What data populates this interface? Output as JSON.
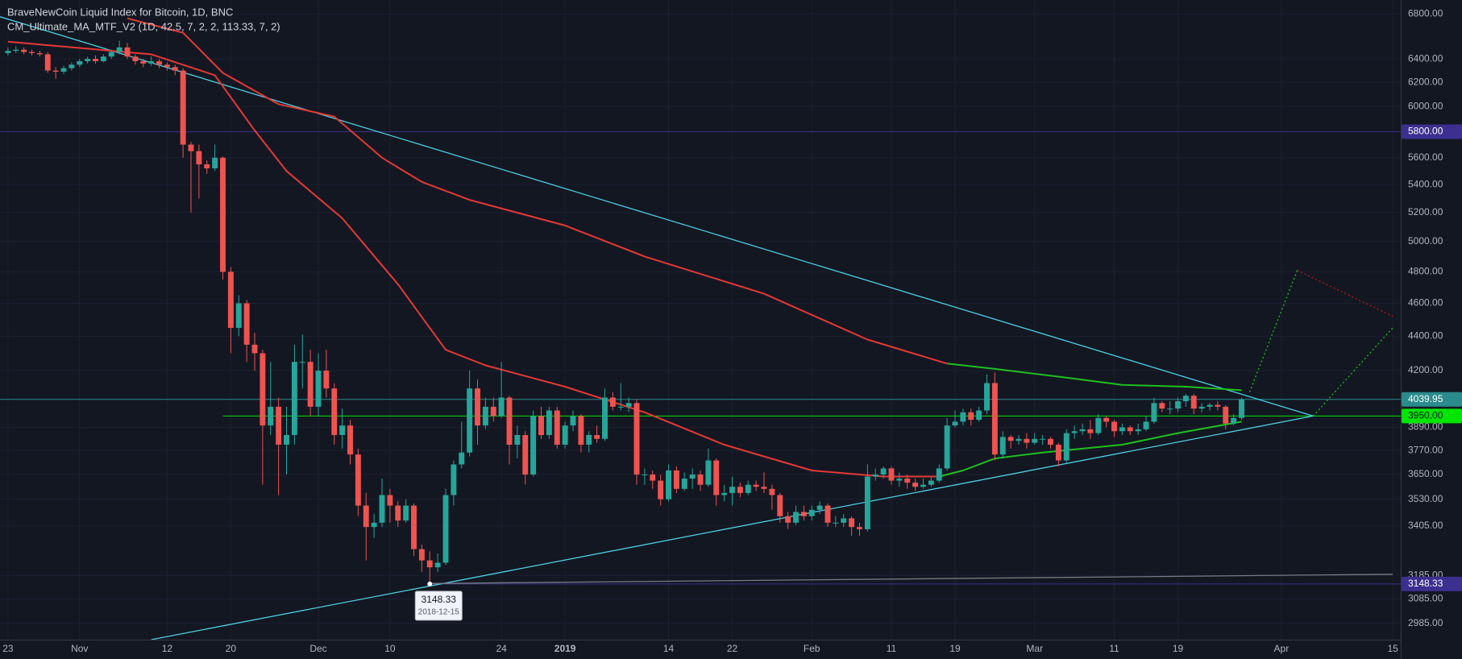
{
  "chart_data": {
    "type": "candlestick",
    "title": "BraveNewCoin Liquid Index for Bitcoin, 1D, BNC",
    "subtitle": "CM_Ultimate_MA_MTF_V2 (1D, 42.5, 7, 2, 2, 113.33, 7, 2)",
    "log_scale": true,
    "grid": true,
    "up_color": "#26a69a",
    "down_color": "#ef5350",
    "xlim": [
      "2018-10-22",
      "2019-04-16"
    ],
    "ylim": [
      2920,
      6930
    ],
    "xticks": [
      {
        "value": "2018-10-23",
        "label": "23"
      },
      {
        "value": "2018-11-01",
        "label": "Nov"
      },
      {
        "value": "2018-11-12",
        "label": "12"
      },
      {
        "value": "2018-11-20",
        "label": "20"
      },
      {
        "value": "2018-12-01",
        "label": "Dec"
      },
      {
        "value": "2018-12-10",
        "label": "10"
      },
      {
        "value": "2018-12-24",
        "label": "24"
      },
      {
        "value": "2019-01-01",
        "label": "2019"
      },
      {
        "value": "2019-01-14",
        "label": "14"
      },
      {
        "value": "2019-01-22",
        "label": "22"
      },
      {
        "value": "2019-02-01",
        "label": "Feb"
      },
      {
        "value": "2019-02-11",
        "label": "11"
      },
      {
        "value": "2019-02-19",
        "label": "19"
      },
      {
        "value": "2019-03-01",
        "label": "Mar"
      },
      {
        "value": "2019-03-11",
        "label": "11"
      },
      {
        "value": "2019-03-19",
        "label": "19"
      },
      {
        "value": "2019-04-01",
        "label": "Apr"
      },
      {
        "value": "2019-04-15",
        "label": "15"
      }
    ],
    "yticks": [
      {
        "value": 6800,
        "label": "6800.00"
      },
      {
        "value": 6400,
        "label": "6400.00"
      },
      {
        "value": 6200,
        "label": "6200.00"
      },
      {
        "value": 6000,
        "label": "6000.00"
      },
      {
        "value": 5600,
        "label": "5600.00"
      },
      {
        "value": 5400,
        "label": "5400.00"
      },
      {
        "value": 5200,
        "label": "5200.00"
      },
      {
        "value": 5000,
        "label": "5000.00"
      },
      {
        "value": 4800,
        "label": "4800.00"
      },
      {
        "value": 4600,
        "label": "4600.00"
      },
      {
        "value": 4400,
        "label": "4400.00"
      },
      {
        "value": 4200,
        "label": "4200.00"
      },
      {
        "value": 3890,
        "label": "3890.00"
      },
      {
        "value": 3770,
        "label": "3770.00"
      },
      {
        "value": 3650,
        "label": "3650.00"
      },
      {
        "value": 3530,
        "label": "3530.00"
      },
      {
        "value": 3405,
        "label": "3405.00"
      },
      {
        "value": 3185,
        "label": "3185.00"
      },
      {
        "value": 3085,
        "label": "3085.00"
      },
      {
        "value": 2985,
        "label": "2985.00"
      }
    ],
    "x": [
      "2018-10-23",
      "2018-10-24",
      "2018-10-25",
      "2018-10-26",
      "2018-10-27",
      "2018-10-28",
      "2018-10-29",
      "2018-10-30",
      "2018-10-31",
      "2018-11-01",
      "2018-11-02",
      "2018-11-03",
      "2018-11-04",
      "2018-11-05",
      "2018-11-06",
      "2018-11-07",
      "2018-11-08",
      "2018-11-09",
      "2018-11-10",
      "2018-11-11",
      "2018-11-12",
      "2018-11-13",
      "2018-11-14",
      "2018-11-15",
      "2018-11-16",
      "2018-11-17",
      "2018-11-18",
      "2018-11-19",
      "2018-11-20",
      "2018-11-21",
      "2018-11-22",
      "2018-11-23",
      "2018-11-24",
      "2018-11-25",
      "2018-11-26",
      "2018-11-27",
      "2018-11-28",
      "2018-11-29",
      "2018-11-30",
      "2018-12-01",
      "2018-12-02",
      "2018-12-03",
      "2018-12-04",
      "2018-12-05",
      "2018-12-06",
      "2018-12-07",
      "2018-12-08",
      "2018-12-09",
      "2018-12-10",
      "2018-12-11",
      "2018-12-12",
      "2018-12-13",
      "2018-12-14",
      "2018-12-15",
      "2018-12-16",
      "2018-12-17",
      "2018-12-18",
      "2018-12-19",
      "2018-12-20",
      "2018-12-21",
      "2018-12-22",
      "2018-12-23",
      "2018-12-24",
      "2018-12-25",
      "2018-12-26",
      "2018-12-27",
      "2018-12-28",
      "2018-12-29",
      "2018-12-30",
      "2018-12-31",
      "2019-01-01",
      "2019-01-02",
      "2019-01-03",
      "2019-01-04",
      "2019-01-05",
      "2019-01-06",
      "2019-01-07",
      "2019-01-08",
      "2019-01-09",
      "2019-01-10",
      "2019-01-11",
      "2019-01-12",
      "2019-01-13",
      "2019-01-14",
      "2019-01-15",
      "2019-01-16",
      "2019-01-17",
      "2019-01-18",
      "2019-01-19",
      "2019-01-20",
      "2019-01-21",
      "2019-01-22",
      "2019-01-23",
      "2019-01-24",
      "2019-01-25",
      "2019-01-26",
      "2019-01-27",
      "2019-01-28",
      "2019-01-29",
      "2019-01-30",
      "2019-01-31",
      "2019-02-01",
      "2019-02-02",
      "2019-02-03",
      "2019-02-04",
      "2019-02-05",
      "2019-02-06",
      "2019-02-07",
      "2019-02-08",
      "2019-02-09",
      "2019-02-10",
      "2019-02-11",
      "2019-02-12",
      "2019-02-13",
      "2019-02-14",
      "2019-02-15",
      "2019-02-16",
      "2019-02-17",
      "2019-02-18",
      "2019-02-19",
      "2019-02-20",
      "2019-02-21",
      "2019-02-22",
      "2019-02-23",
      "2019-02-24",
      "2019-02-25",
      "2019-02-26",
      "2019-02-27",
      "2019-02-28",
      "2019-03-01",
      "2019-03-02",
      "2019-03-03",
      "2019-03-04",
      "2019-03-05",
      "2019-03-06",
      "2019-03-07",
      "2019-03-08",
      "2019-03-09",
      "2019-03-10",
      "2019-03-11",
      "2019-03-12",
      "2019-03-13",
      "2019-03-14",
      "2019-03-15",
      "2019-03-16",
      "2019-03-17",
      "2019-03-18",
      "2019-03-19",
      "2019-03-20",
      "2019-03-21",
      "2019-03-22",
      "2019-03-23",
      "2019-03-24",
      "2019-03-25",
      "2019-03-26",
      "2019-03-27"
    ],
    "open": [
      6450,
      6470,
      6480,
      6460,
      6450,
      6440,
      6300,
      6290,
      6320,
      6350,
      6380,
      6400,
      6380,
      6420,
      6460,
      6500,
      6420,
      6380,
      6360,
      6380,
      6350,
      6330,
      6300,
      5700,
      5650,
      5550,
      5520,
      5600,
      4800,
      4450,
      4600,
      4350,
      4300,
      3900,
      4000,
      3800,
      3850,
      4250,
      4250,
      4000,
      4200,
      4100,
      3850,
      3900,
      3750,
      3500,
      3400,
      3420,
      3550,
      3500,
      3430,
      3500,
      3300,
      3250,
      3220,
      3240,
      3550,
      3700,
      3760,
      4100,
      3900,
      4000,
      3950,
      4050,
      3800,
      3850,
      3650,
      3950,
      3850,
      3980,
      3800,
      3900,
      3950,
      3800,
      3850,
      3830,
      4050,
      4000,
      4000,
      4020,
      3650,
      3650,
      3620,
      3530,
      3670,
      3580,
      3630,
      3650,
      3600,
      3720,
      3550,
      3560,
      3590,
      3560,
      3600,
      3590,
      3580,
      3550,
      3450,
      3420,
      3470,
      3450,
      3480,
      3500,
      3420,
      3420,
      3440,
      3400,
      3390,
      3640,
      3650,
      3680,
      3620,
      3630,
      3610,
      3590,
      3600,
      3620,
      3680,
      3900,
      3920,
      3970,
      3930,
      3980,
      4130,
      3750,
      3840,
      3820,
      3830,
      3810,
      3830,
      3830,
      3800,
      3720,
      3860,
      3870,
      3880,
      3860,
      3940,
      3920,
      3870,
      3890,
      3870,
      3880,
      3920,
      4020,
      3990,
      3990,
      4030,
      4060,
      3990,
      4000,
      4010,
      4000,
      3910,
      3940
    ],
    "high": [
      6500,
      6510,
      6500,
      6480,
      6470,
      6460,
      6330,
      6340,
      6370,
      6400,
      6420,
      6430,
      6440,
      6480,
      6560,
      6540,
      6440,
      6400,
      6420,
      6400,
      6370,
      6350,
      6320,
      5720,
      5700,
      5580,
      5700,
      5610,
      4830,
      4650,
      4620,
      4420,
      4320,
      4250,
      4050,
      4000,
      4350,
      4410,
      4320,
      4300,
      4320,
      4130,
      3990,
      3930,
      3780,
      3560,
      3460,
      3630,
      3580,
      3520,
      3530,
      3510,
      3320,
      3290,
      3280,
      3580,
      3720,
      3920,
      4200,
      4150,
      4050,
      4050,
      4250,
      4060,
      3900,
      3870,
      3980,
      4000,
      4000,
      4000,
      3920,
      3980,
      3960,
      3870,
      3900,
      4100,
      4080,
      4130,
      4050,
      4040,
      3680,
      3670,
      3650,
      3700,
      3690,
      3660,
      3680,
      3670,
      3780,
      3730,
      3600,
      3640,
      3610,
      3620,
      3620,
      3660,
      3600,
      3560,
      3470,
      3500,
      3500,
      3500,
      3520,
      3510,
      3450,
      3460,
      3450,
      3420,
      3700,
      3680,
      3690,
      3690,
      3660,
      3650,
      3630,
      3630,
      3640,
      3700,
      3940,
      3980,
      3990,
      3990,
      4000,
      4180,
      4190,
      3870,
      3850,
      3850,
      3860,
      3860,
      3850,
      3840,
      3810,
      3880,
      3900,
      3910,
      3930,
      3960,
      3950,
      3930,
      3910,
      3900,
      3910,
      3950,
      4050,
      4030,
      4030,
      4050,
      4070,
      4070,
      4020,
      4020,
      4030,
      4010,
      3960,
      4050
    ],
    "low": [
      6430,
      6450,
      6440,
      6430,
      6420,
      6280,
      6230,
      6270,
      6300,
      6330,
      6360,
      6360,
      6370,
      6400,
      6440,
      6400,
      6350,
      6330,
      6340,
      6320,
      6300,
      6260,
      5600,
      5200,
      5300,
      5480,
      5500,
      4750,
      4300,
      4400,
      4250,
      4200,
      3600,
      3850,
      3550,
      3650,
      3800,
      4100,
      3950,
      3950,
      4050,
      3800,
      3780,
      3700,
      3450,
      3250,
      3350,
      3400,
      3420,
      3400,
      3420,
      3270,
      3200,
      3148.33,
      3200,
      3230,
      3500,
      3680,
      3740,
      3800,
      3880,
      3920,
      3940,
      3700,
      3730,
      3600,
      3640,
      3830,
      3830,
      3780,
      3780,
      3870,
      3760,
      3760,
      3810,
      3820,
      3980,
      3980,
      3970,
      3600,
      3600,
      3580,
      3500,
      3520,
      3560,
      3570,
      3580,
      3570,
      3590,
      3500,
      3520,
      3500,
      3540,
      3550,
      3570,
      3560,
      3480,
      3420,
      3390,
      3410,
      3430,
      3430,
      3460,
      3400,
      3400,
      3400,
      3360,
      3360,
      3380,
      3620,
      3630,
      3600,
      3590,
      3580,
      3570,
      3580,
      3590,
      3610,
      3670,
      3890,
      3900,
      3900,
      3920,
      3960,
      3720,
      3730,
      3780,
      3800,
      3780,
      3800,
      3800,
      3780,
      3690,
      3710,
      3830,
      3850,
      3830,
      3850,
      3890,
      3840,
      3850,
      3850,
      3850,
      3870,
      3910,
      3970,
      3960,
      3970,
      4000,
      3960,
      3970,
      3980,
      3980,
      3880,
      3900,
      3930
    ],
    "close": [
      6470,
      6480,
      6460,
      6450,
      6440,
      6300,
      6290,
      6320,
      6350,
      6380,
      6400,
      6380,
      6420,
      6460,
      6500,
      6420,
      6380,
      6360,
      6380,
      6350,
      6330,
      6300,
      5700,
      5650,
      5550,
      5520,
      5600,
      4800,
      4450,
      4600,
      4350,
      4300,
      3900,
      4000,
      3800,
      3850,
      4250,
      4250,
      4000,
      4200,
      4100,
      3850,
      3900,
      3750,
      3500,
      3400,
      3420,
      3550,
      3500,
      3430,
      3500,
      3300,
      3250,
      3220,
      3240,
      3550,
      3700,
      3760,
      4100,
      3900,
      4000,
      3950,
      4050,
      3800,
      3850,
      3650,
      3950,
      3850,
      3980,
      3800,
      3900,
      3950,
      3800,
      3850,
      3830,
      4050,
      4000,
      4000,
      4020,
      3650,
      3650,
      3620,
      3530,
      3670,
      3580,
      3630,
      3650,
      3600,
      3720,
      3550,
      3560,
      3590,
      3560,
      3600,
      3590,
      3580,
      3550,
      3450,
      3420,
      3470,
      3450,
      3480,
      3500,
      3420,
      3420,
      3440,
      3400,
      3390,
      3640,
      3650,
      3680,
      3620,
      3630,
      3610,
      3590,
      3600,
      3620,
      3680,
      3900,
      3920,
      3970,
      3930,
      3980,
      4130,
      3750,
      3840,
      3820,
      3830,
      3810,
      3830,
      3830,
      3800,
      3720,
      3860,
      3870,
      3880,
      3860,
      3940,
      3920,
      3870,
      3890,
      3870,
      3880,
      3920,
      4020,
      3990,
      3990,
      4030,
      4060,
      3990,
      4000,
      4010,
      4000,
      3910,
      3940,
      4040
    ],
    "lines": [
      {
        "color": "#e53935",
        "x": [
          "2018-10-23",
          "2018-11-10",
          "2018-11-18",
          "2018-11-23",
          "2018-11-27",
          "2018-12-04",
          "2018-12-11",
          "2018-12-17",
          "2018-12-22",
          "2019-01-01",
          "2019-01-11",
          "2019-01-21",
          "2019-02-01",
          "2019-02-10",
          "2019-02-17"
        ],
        "values": [
          6550,
          6440,
          6260,
          5810,
          5500,
          5160,
          4720,
          4320,
          4230,
          4110,
          3970,
          3800,
          3670,
          3640,
          3640
        ]
      },
      {
        "color": "#1fbf1f",
        "x": [
          "2019-02-17",
          "2019-02-20",
          "2019-02-24",
          "2019-03-02",
          "2019-03-12",
          "2019-03-19",
          "2019-03-27"
        ],
        "values": [
          3640,
          3670,
          3730,
          3760,
          3800,
          3860,
          3920
        ]
      },
      {
        "color": "#e53935",
        "x": [
          "2018-11-07",
          "2018-11-14",
          "2018-11-19",
          "2018-11-26",
          "2018-12-03",
          "2018-12-09",
          "2018-12-14",
          "2018-12-20",
          "2019-01-01",
          "2019-01-11",
          "2019-01-26",
          "2019-02-08",
          "2019-02-18"
        ],
        "values": [
          6760,
          6630,
          6280,
          6020,
          5920,
          5600,
          5420,
          5290,
          5110,
          4900,
          4660,
          4380,
          4240
        ]
      },
      {
        "color": "#1fbf1f",
        "x": [
          "2019-02-18",
          "2019-02-24",
          "2019-03-05",
          "2019-03-12",
          "2019-03-20",
          "2019-03-27"
        ],
        "values": [
          4240,
          4210,
          4160,
          4120,
          4110,
          4090
        ]
      }
    ],
    "drawings": [
      {
        "color": "#4dd0e1",
        "style": "solid",
        "points": [
          [
            "2018-10-22",
            6775
          ],
          [
            "2019-04-05",
            3950
          ]
        ]
      },
      {
        "color": "#4dd0e1",
        "style": "solid",
        "points": [
          [
            "2018-11-10",
            2920
          ],
          [
            "2019-04-05",
            3950
          ]
        ]
      },
      {
        "color": "#787b86",
        "style": "solid",
        "points": [
          [
            "2018-12-15",
            3150
          ],
          [
            "2019-04-15",
            3190
          ]
        ]
      },
      {
        "color": "#1fbf1f",
        "style": "dotted",
        "points": [
          [
            "2019-03-28",
            4080
          ],
          [
            "2019-04-03",
            4810
          ]
        ]
      },
      {
        "color": "#1fbf1f",
        "style": "dotted",
        "points": [
          [
            "2019-04-05",
            3950
          ],
          [
            "2019-04-15",
            4450
          ]
        ]
      },
      {
        "color": "#b71c1c",
        "style": "dotted",
        "points": [
          [
            "2019-04-03",
            4810
          ],
          [
            "2019-04-15",
            4520
          ]
        ]
      }
    ],
    "price_lines": [
      {
        "value": 5800,
        "label": "5800.00",
        "color": "#3b2f8f",
        "text_color": "#ffffff"
      },
      {
        "value": 4039.95,
        "label": "4039.95",
        "color": "#2a8c8c",
        "text_color": "#ffffff"
      },
      {
        "value": 3950,
        "label": "3950.00",
        "color": "#00e600",
        "text_color": "#131722",
        "from": "2018-11-19"
      },
      {
        "value": 3148.33,
        "label": "3148.33",
        "color": "#3b2f8f",
        "text_color": "#ffffff",
        "from": "2018-12-15"
      }
    ],
    "annotation": {
      "x": "2018-12-15",
      "value": 3148.33
    }
  }
}
